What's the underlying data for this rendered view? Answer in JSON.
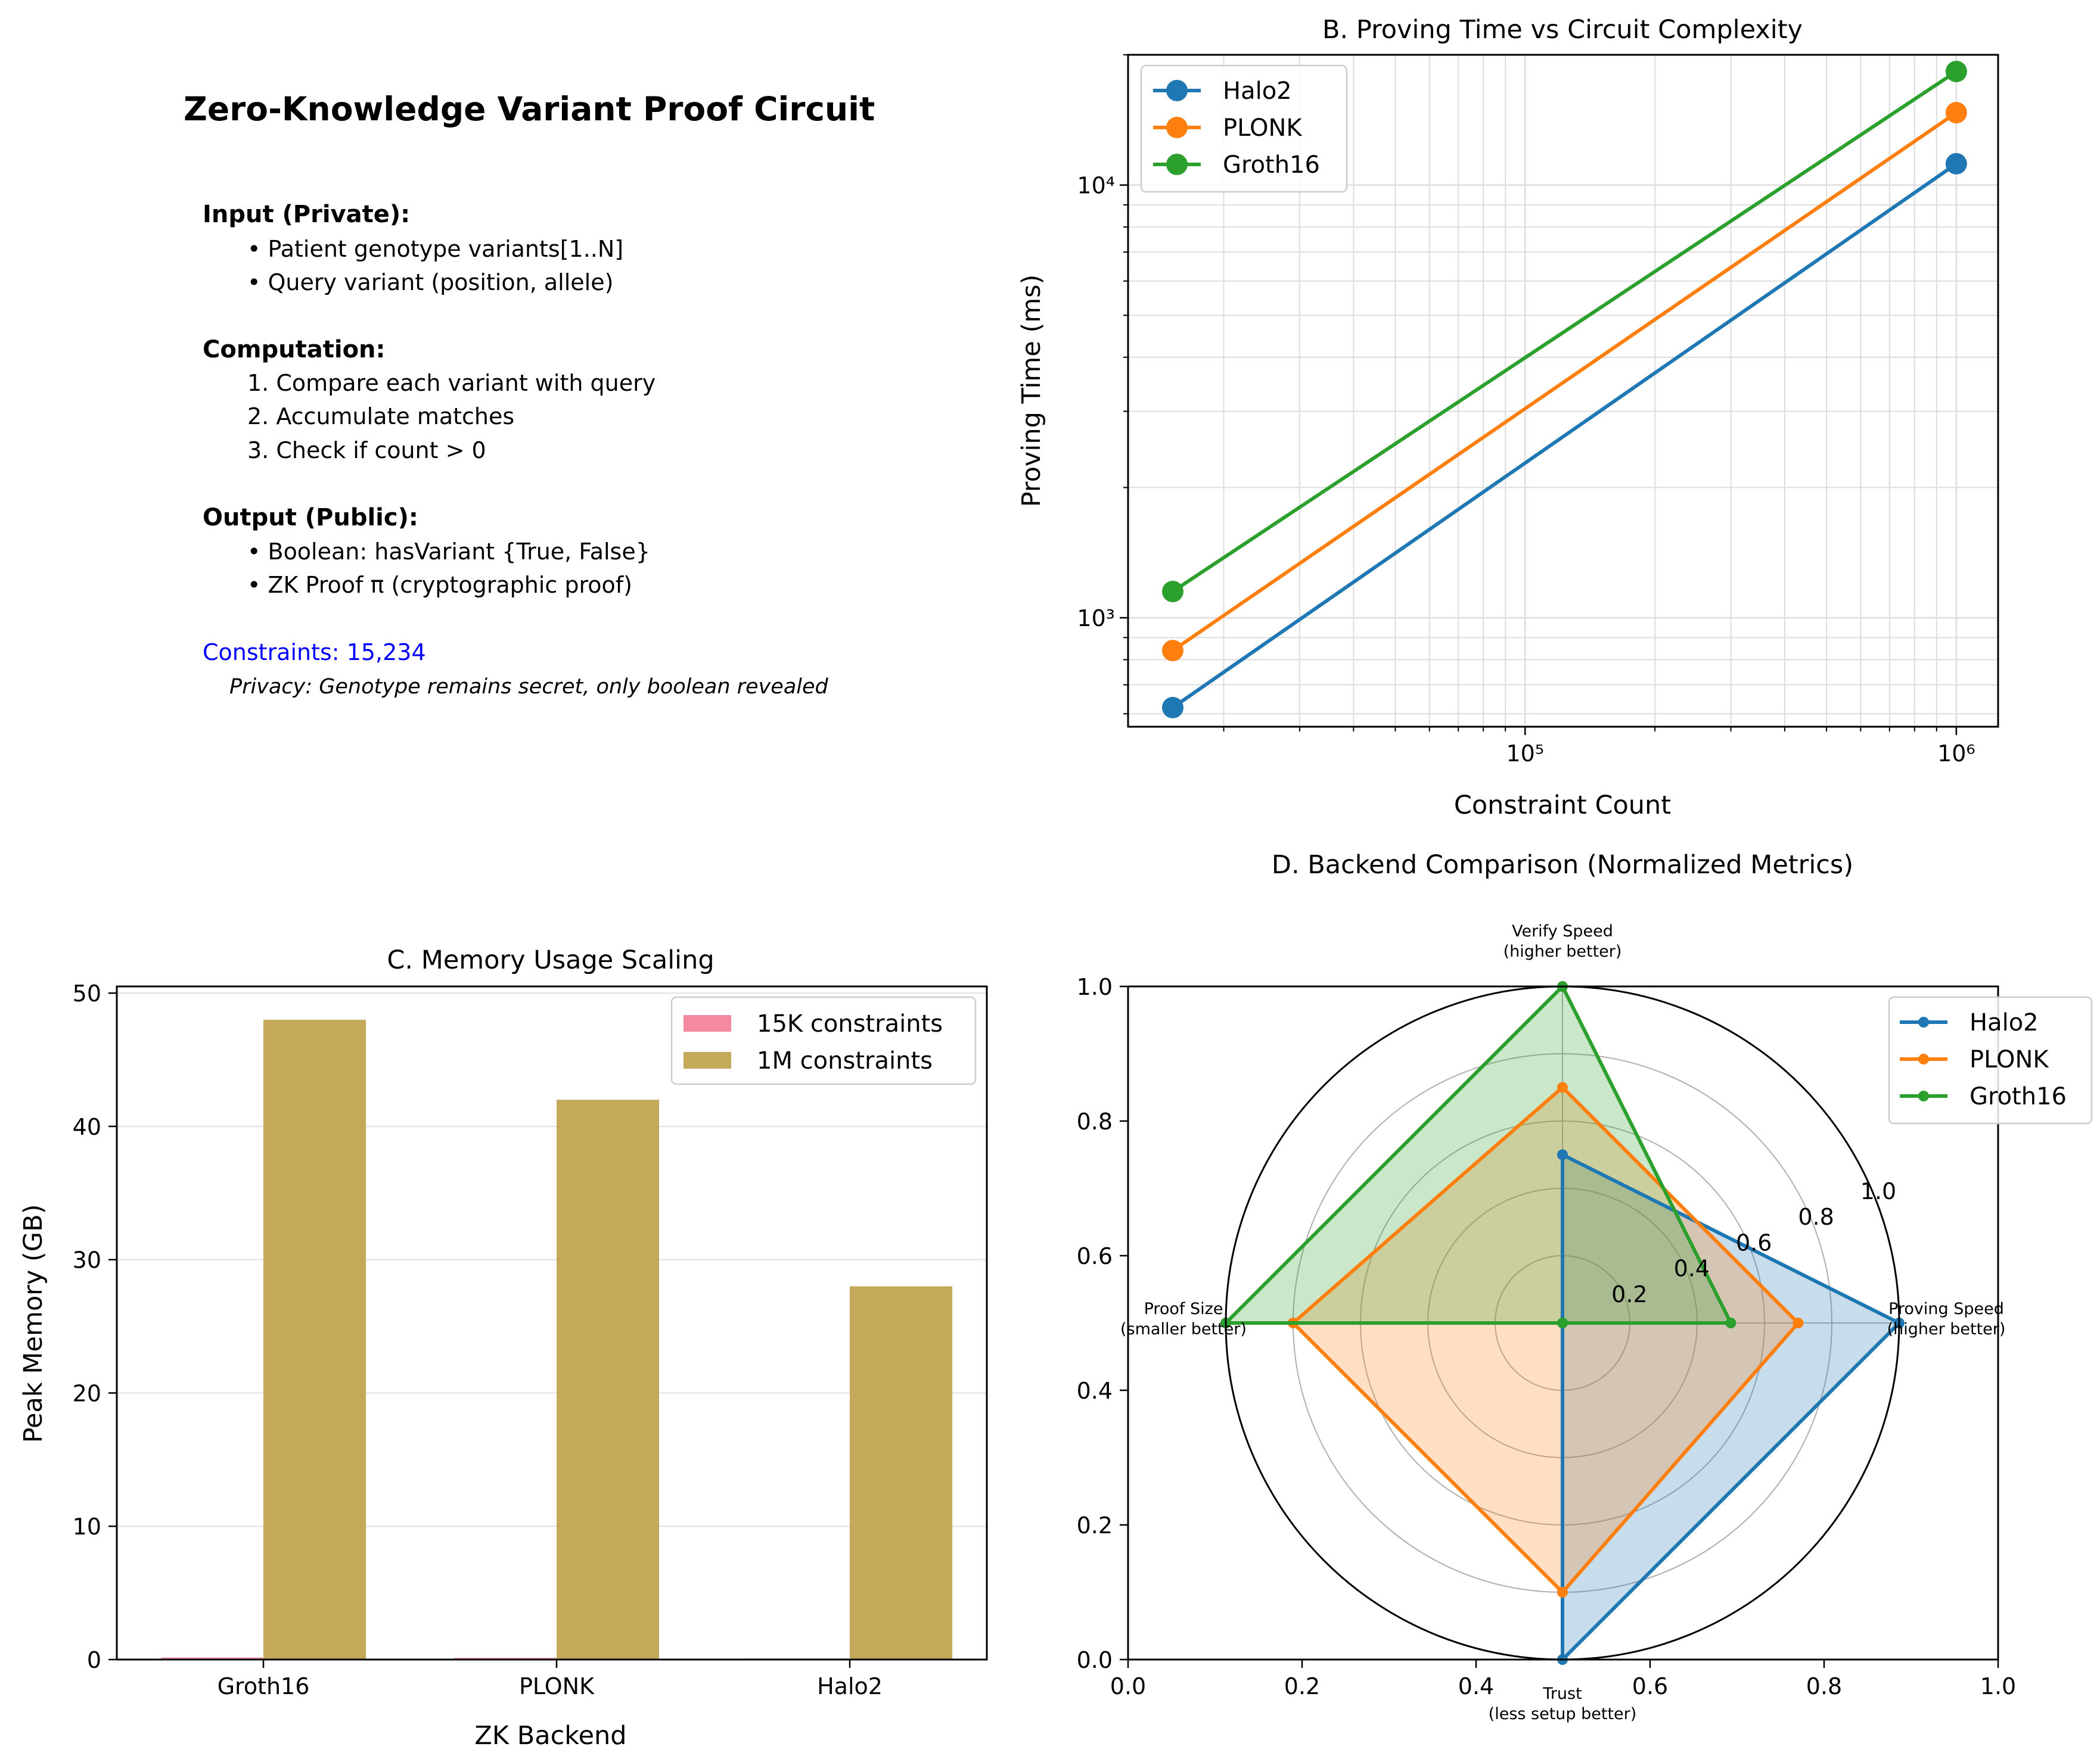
{
  "diagram": {
    "title": "Zero-Knowledge Variant Proof Circuit",
    "sections": [
      {
        "heading": "Input (Private):",
        "lines": [
          "• Patient genotype variants[1..N]",
          "• Query variant (position, allele)"
        ]
      },
      {
        "heading": "Computation:",
        "lines": [
          "1. Compare each variant with query",
          "2. Accumulate matches",
          "3. Check if count > 0"
        ]
      },
      {
        "heading": "Output (Public):",
        "lines": [
          "• Boolean: hasVariant {True, False}",
          "• ZK Proof π (cryptographic proof)"
        ]
      }
    ],
    "constraints": "Constraints: 15,234",
    "privacy": "Privacy: Genotype remains secret, only boolean revealed",
    "constraints_color": "#0000ff"
  },
  "chart_data": [
    {
      "id": "B",
      "type": "line",
      "title": "B. Proving Time vs Circuit Complexity",
      "xlabel": "Constraint Count",
      "ylabel": "Proving Time (ms)",
      "xscale": "log",
      "yscale": "log",
      "xlim": [
        12000,
        1250000
      ],
      "ylim": [
        560,
        20000
      ],
      "x": [
        15234,
        1000000
      ],
      "xticks": [
        {
          "value": 100000,
          "label": "10⁵"
        },
        {
          "value": 1000000,
          "label": "10⁶"
        }
      ],
      "yticks": [
        {
          "value": 1000,
          "label": "10³"
        },
        {
          "value": 10000,
          "label": "10⁴"
        }
      ],
      "series": [
        {
          "name": "Halo2",
          "values": [
            620,
            11200
          ],
          "color": "#1f77b4"
        },
        {
          "name": "PLONK",
          "values": [
            840,
            14700
          ],
          "color": "#ff7f0e"
        },
        {
          "name": "Groth16",
          "values": [
            1150,
            18300
          ],
          "color": "#2ca02c"
        }
      ],
      "grid": true,
      "legend": "upper-left"
    },
    {
      "id": "C",
      "type": "bar",
      "title": "C. Memory Usage Scaling",
      "xlabel": "ZK Backend",
      "ylabel": "Peak Memory (GB)",
      "categories": [
        "Groth16",
        "PLONK",
        "Halo2"
      ],
      "ylim": [
        0,
        50.5
      ],
      "yticks": [
        0,
        10,
        20,
        30,
        40,
        50
      ],
      "series": [
        {
          "name": "15K constraints",
          "values": [
            0.15,
            0.12,
            0.08
          ],
          "color": "#f4899f"
        },
        {
          "name": "1M constraints",
          "values": [
            48,
            42,
            28
          ],
          "color": "#c5a95a"
        }
      ],
      "grid": "y",
      "legend": "upper-right"
    },
    {
      "id": "D",
      "type": "radar",
      "title": "D. Backend Comparison (Normalized Metrics)",
      "axes": [
        {
          "label": [
            "Proving Speed",
            "(higher better)"
          ]
        },
        {
          "label": [
            "Verify Speed",
            "(higher better)"
          ]
        },
        {
          "label": [
            "Proof Size",
            "(smaller better)"
          ]
        },
        {
          "label": [
            "Trust",
            "(less setup better)"
          ]
        }
      ],
      "rlim": [
        0,
        1
      ],
      "rticks": [
        0.2,
        0.4,
        0.6,
        0.8,
        1.0
      ],
      "cartesian_ticks": {
        "x": [
          "0.0",
          "0.2",
          "0.4",
          "0.6",
          "0.8",
          "1.0"
        ],
        "y": [
          "0.0",
          "0.2",
          "0.4",
          "0.6",
          "0.8",
          "1.0"
        ]
      },
      "series": [
        {
          "name": "Halo2",
          "values": [
            1.0,
            0.5,
            0.0,
            1.0
          ],
          "color": "#1f77b4"
        },
        {
          "name": "PLONK",
          "values": [
            0.7,
            0.7,
            0.8,
            0.8
          ],
          "color": "#ff7f0e"
        },
        {
          "name": "Groth16",
          "values": [
            0.5,
            1.0,
            1.0,
            0.0
          ],
          "color": "#2ca02c"
        }
      ],
      "legend": "upper-right"
    }
  ]
}
